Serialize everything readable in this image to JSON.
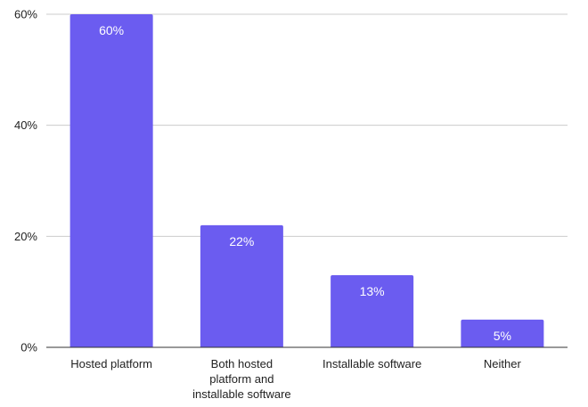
{
  "chart_data": {
    "type": "bar",
    "title": "",
    "xlabel": "",
    "ylabel": "",
    "categories": [
      [
        "Hosted platform"
      ],
      [
        "Both hosted",
        "platform and",
        "installable software"
      ],
      [
        "Installable software"
      ],
      [
        "Neither"
      ]
    ],
    "values": [
      60,
      22,
      13,
      5
    ],
    "data_labels": [
      "60%",
      "22%",
      "13%",
      "5%"
    ],
    "ylim": [
      0,
      60
    ],
    "yticks": [
      0,
      20,
      40,
      60
    ],
    "ytick_labels": [
      "0%",
      "20%",
      "40%",
      "60%"
    ],
    "grid": true,
    "legend": "none",
    "colors": {
      "bar": "#6b5cf0",
      "gridline": "#cccccc",
      "axis": "#333333",
      "text": "#222222",
      "data_label": "#ffffff"
    }
  }
}
